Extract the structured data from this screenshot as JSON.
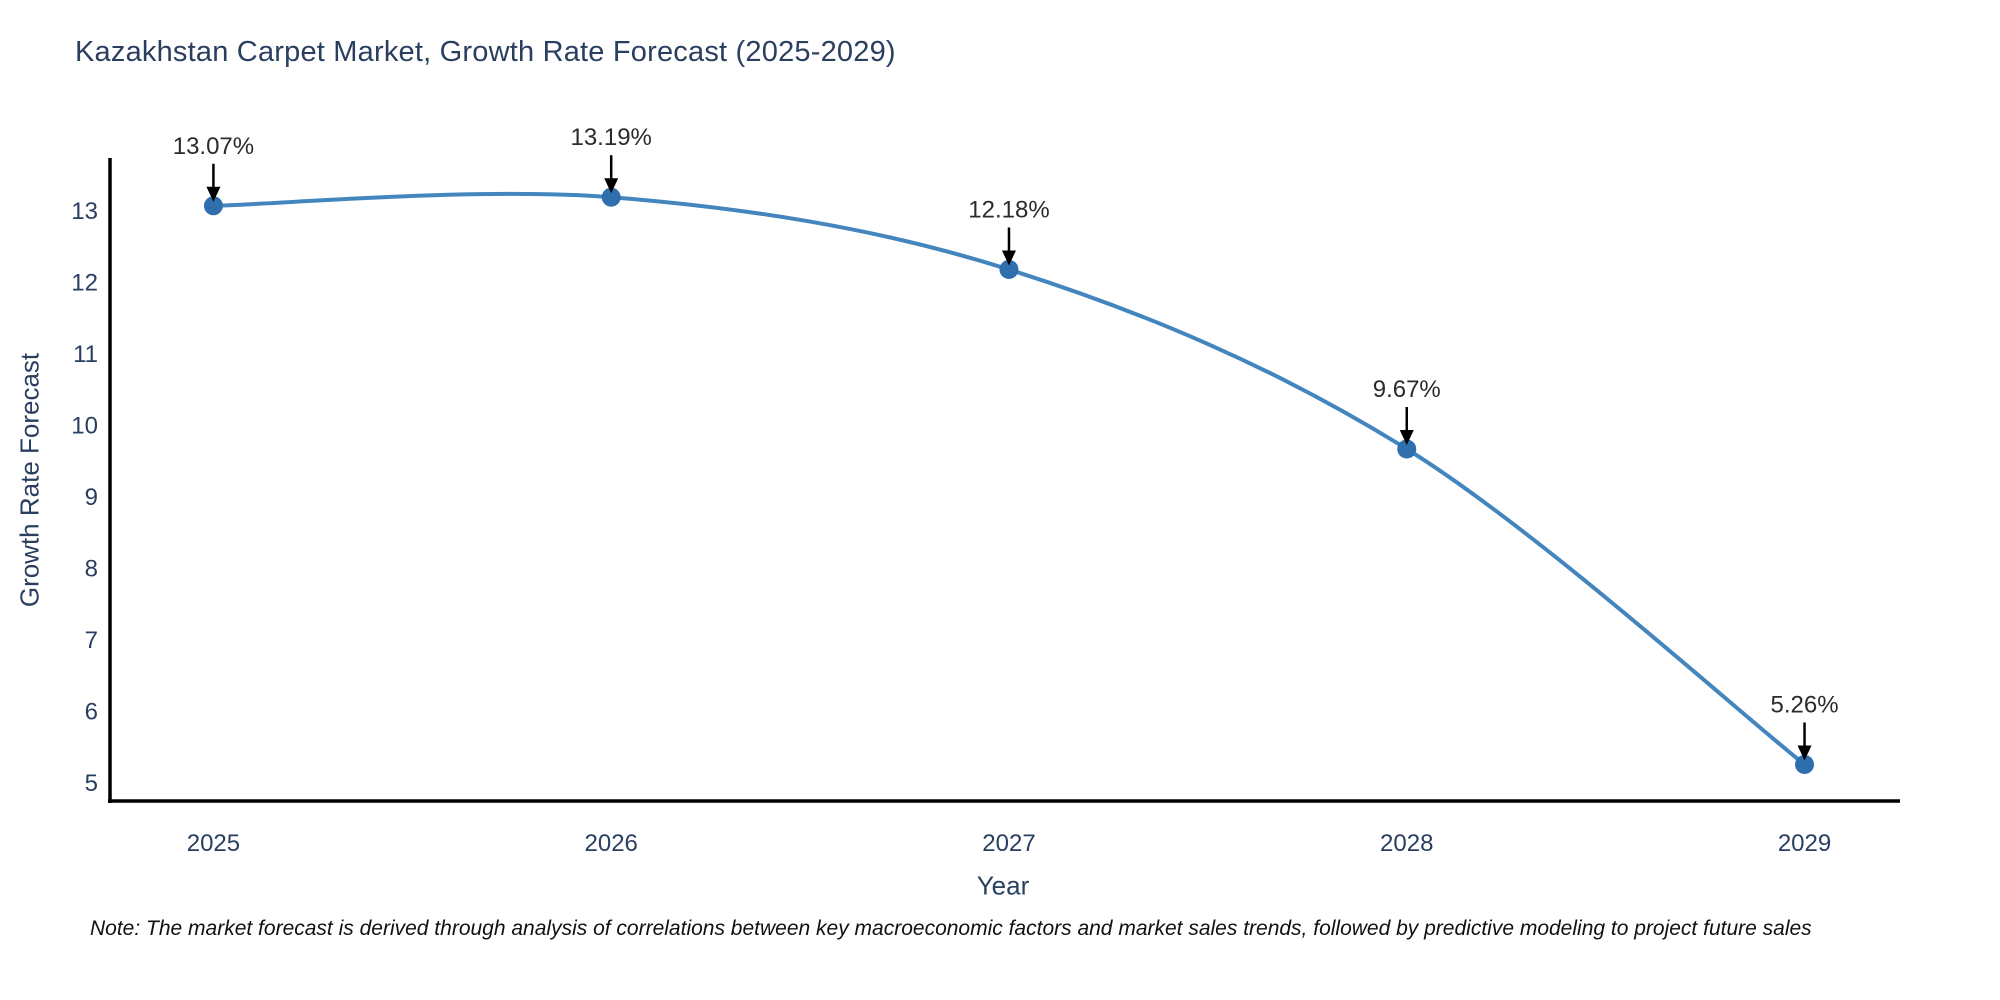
{
  "title": "Kazakhstan Carpet Market, Growth Rate Forecast (2025-2029)",
  "note": "Note: The market forecast is derived through analysis of correlations between key macroeconomic factors and market sales trends, followed by predictive modeling to project future sales",
  "chart_data": {
    "type": "line",
    "title": "Kazakhstan Carpet Market, Growth Rate Forecast (2025-2029)",
    "xlabel": "Year",
    "ylabel": "Growth Rate Forecast",
    "x": [
      2025,
      2026,
      2027,
      2028,
      2029
    ],
    "values": [
      13.07,
      13.19,
      12.18,
      9.67,
      5.26
    ],
    "point_labels": [
      "13.07%",
      "13.19%",
      "12.18%",
      "9.67%",
      "5.26%"
    ],
    "xticks": [
      "2025",
      "2026",
      "2027",
      "2028",
      "2029"
    ],
    "yticks": [
      5,
      6,
      7,
      8,
      9,
      10,
      11,
      12,
      13
    ],
    "xlim": [
      2024.74,
      2029.24
    ],
    "ylim": [
      4.75,
      13.71
    ],
    "grid": false,
    "legend": "none",
    "line_shape": "spline",
    "colors": {
      "line": "#4385bd",
      "marker": "#2f6fae",
      "axis": "#000000",
      "tick_text": "#2a3f5f",
      "annotation_text": "#2b2b2b",
      "arrow": "#000000",
      "background": "#ffffff"
    }
  }
}
